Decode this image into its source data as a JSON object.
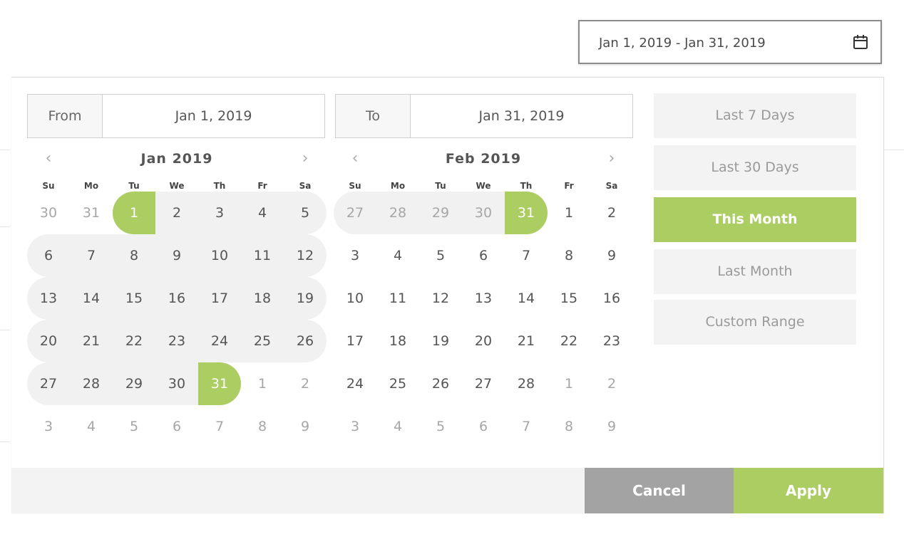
{
  "trigger": {
    "value": "Jan 1, 2019 - Jan 31, 2019",
    "icon": "calendar-icon"
  },
  "from": {
    "label": "From",
    "value": "Jan 1, 2019"
  },
  "to": {
    "label": "To",
    "value": "Jan 31, 2019"
  },
  "weekdays": [
    "Su",
    "Mo",
    "Tu",
    "We",
    "Th",
    "Fr",
    "Sa"
  ],
  "nav": {
    "prev": "‹",
    "next": "›"
  },
  "months": [
    {
      "title": "Jan 2019",
      "days": [
        [
          "30",
          "31",
          "1",
          "2",
          "3",
          "4",
          "5"
        ],
        [
          "6",
          "7",
          "8",
          "9",
          "10",
          "11",
          "12"
        ],
        [
          "13",
          "14",
          "15",
          "16",
          "17",
          "18",
          "19"
        ],
        [
          "20",
          "21",
          "22",
          "23",
          "24",
          "25",
          "26"
        ],
        [
          "27",
          "28",
          "29",
          "30",
          "31",
          "1",
          "2"
        ],
        [
          "3",
          "4",
          "5",
          "6",
          "7",
          "8",
          "9"
        ]
      ]
    },
    {
      "title": "Feb 2019",
      "days": [
        [
          "27",
          "28",
          "29",
          "30",
          "31",
          "1",
          "2"
        ],
        [
          "3",
          "4",
          "5",
          "6",
          "7",
          "8",
          "9"
        ],
        [
          "10",
          "11",
          "12",
          "13",
          "14",
          "15",
          "16"
        ],
        [
          "17",
          "18",
          "19",
          "20",
          "21",
          "22",
          "23"
        ],
        [
          "24",
          "25",
          "26",
          "27",
          "28",
          "1",
          "2"
        ],
        [
          "3",
          "4",
          "5",
          "6",
          "7",
          "8",
          "9"
        ]
      ]
    }
  ],
  "ranges": [
    {
      "label": "Last 7 Days",
      "active": false
    },
    {
      "label": "Last 30 Days",
      "active": false
    },
    {
      "label": "This Month",
      "active": true
    },
    {
      "label": "Last Month",
      "active": false
    },
    {
      "label": "Custom Range",
      "active": false
    }
  ],
  "buttons": {
    "cancel": "Cancel",
    "apply": "Apply"
  },
  "colors": {
    "accent": "#abcd62",
    "range_bg": "#f1f1f1",
    "cancel": "#a3a3a3"
  }
}
